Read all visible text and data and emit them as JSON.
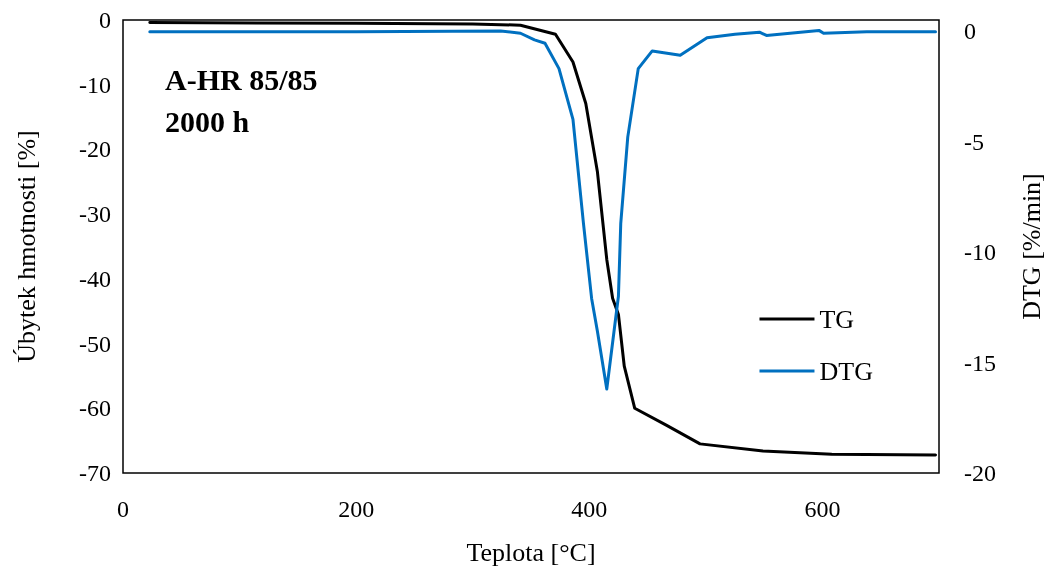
{
  "chart_data": {
    "type": "line",
    "xlabel": "Teplota [°C]",
    "ylabel": "Úbytek hmotnosti [%]",
    "y2label": "DTG [%/min]",
    "annotations": [
      "A-HR 85/85",
      "2000 h"
    ],
    "xlim": [
      0,
      700
    ],
    "xticks": [
      0,
      200,
      400,
      600
    ],
    "ylim": [
      -70,
      0
    ],
    "yticks": [
      -70,
      -60,
      -50,
      -40,
      -30,
      -20,
      -10,
      0
    ],
    "y2lim": [
      -20,
      0.5
    ],
    "y2ticks": [
      -20,
      -15,
      -10,
      -5,
      0
    ],
    "legend": "right",
    "grid": false,
    "marker": "none",
    "line_style": "solid",
    "series": [
      {
        "name": "TG",
        "color": "#000000",
        "x": [
          23,
          200,
          300,
          341,
          371,
          386,
          397,
          407,
          415,
          420,
          425,
          430,
          439,
          466,
          495,
          549,
          608,
          697
        ],
        "values": [
          -0.4,
          -0.5,
          -0.6,
          -0.8,
          -2.2,
          -6.5,
          -12.9,
          -23.5,
          -37,
          -43,
          -45.5,
          -53.5,
          -60,
          -62.6,
          -65.5,
          -66.6,
          -67.1,
          -67.2
        ]
      },
      {
        "name": "DTG",
        "color": "#0070c0",
        "axis": "y2",
        "x": [
          23,
          200,
          324,
          341,
          353,
          362,
          374,
          386,
          395,
          402,
          407,
          415,
          425,
          427,
          433,
          442,
          454,
          478,
          501,
          525,
          546,
          552,
          597,
          601,
          638,
          697
        ],
        "values": [
          -0.03,
          -0.03,
          0,
          -0.1,
          -0.4,
          -0.55,
          -1.7,
          -4.0,
          -8.7,
          -12.1,
          -13.6,
          -16.2,
          -12.0,
          -8.7,
          -4.8,
          -1.7,
          -0.9,
          -1.1,
          -0.3,
          -0.15,
          -0.05,
          -0.2,
          0.03,
          -0.1,
          -0.03,
          -0.03
        ]
      }
    ]
  }
}
